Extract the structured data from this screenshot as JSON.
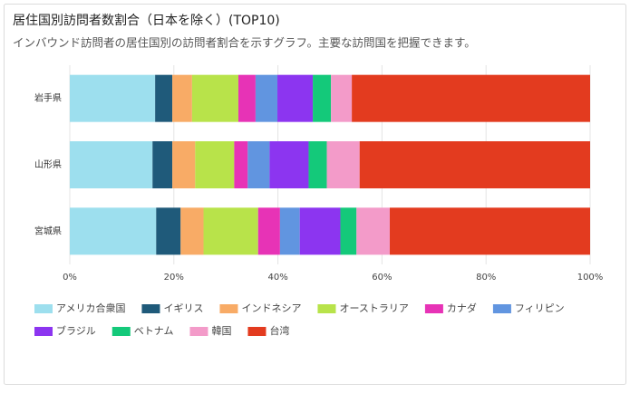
{
  "chart_data": {
    "type": "stacked-bar-horizontal",
    "title": "居住国別訪問者数割合（日本を除く）(TOP10)",
    "subtitle": "インバウンド訪問者の居住国別の訪問者割合を示すグラフ。主要な訪問国を把握できます。",
    "categories": [
      "岩手県",
      "山形県",
      "宮城県"
    ],
    "series": [
      {
        "name": "アメリカ合衆国",
        "color": "#9ddfee",
        "values": [
          16.4,
          15.9,
          16.6
        ]
      },
      {
        "name": "イギリス",
        "color": "#1f5a7a",
        "values": [
          3.3,
          3.8,
          4.7
        ]
      },
      {
        "name": "インドネシア",
        "color": "#f8ab66",
        "values": [
          3.8,
          4.4,
          4.4
        ]
      },
      {
        "name": "オーストラリア",
        "color": "#b8e34a",
        "values": [
          8.9,
          7.5,
          10.5
        ]
      },
      {
        "name": "カナダ",
        "color": "#e733b6",
        "values": [
          3.3,
          2.6,
          4.2
        ]
      },
      {
        "name": "フィリピン",
        "color": "#6195e0",
        "values": [
          4.2,
          4.2,
          3.8
        ]
      },
      {
        "name": "ブラジル",
        "color": "#8c35f0",
        "values": [
          6.8,
          7.5,
          7.8
        ]
      },
      {
        "name": "ベトナム",
        "color": "#14c97a",
        "values": [
          3.5,
          3.5,
          3.1
        ]
      },
      {
        "name": "韓国",
        "color": "#f39bc9",
        "values": [
          4.0,
          6.3,
          6.4
        ]
      },
      {
        "name": "台湾",
        "color": "#e33b1f",
        "values": [
          45.8,
          44.3,
          38.5
        ]
      }
    ],
    "xlim": [
      0,
      100
    ],
    "xticks": [
      {
        "value": 0,
        "label": "0%"
      },
      {
        "value": 20,
        "label": "20%"
      },
      {
        "value": 40,
        "label": "40%"
      },
      {
        "value": 60,
        "label": "60%"
      },
      {
        "value": 80,
        "label": "80%"
      },
      {
        "value": 100,
        "label": "100%"
      }
    ],
    "grid": true,
    "legend": "bottom"
  }
}
